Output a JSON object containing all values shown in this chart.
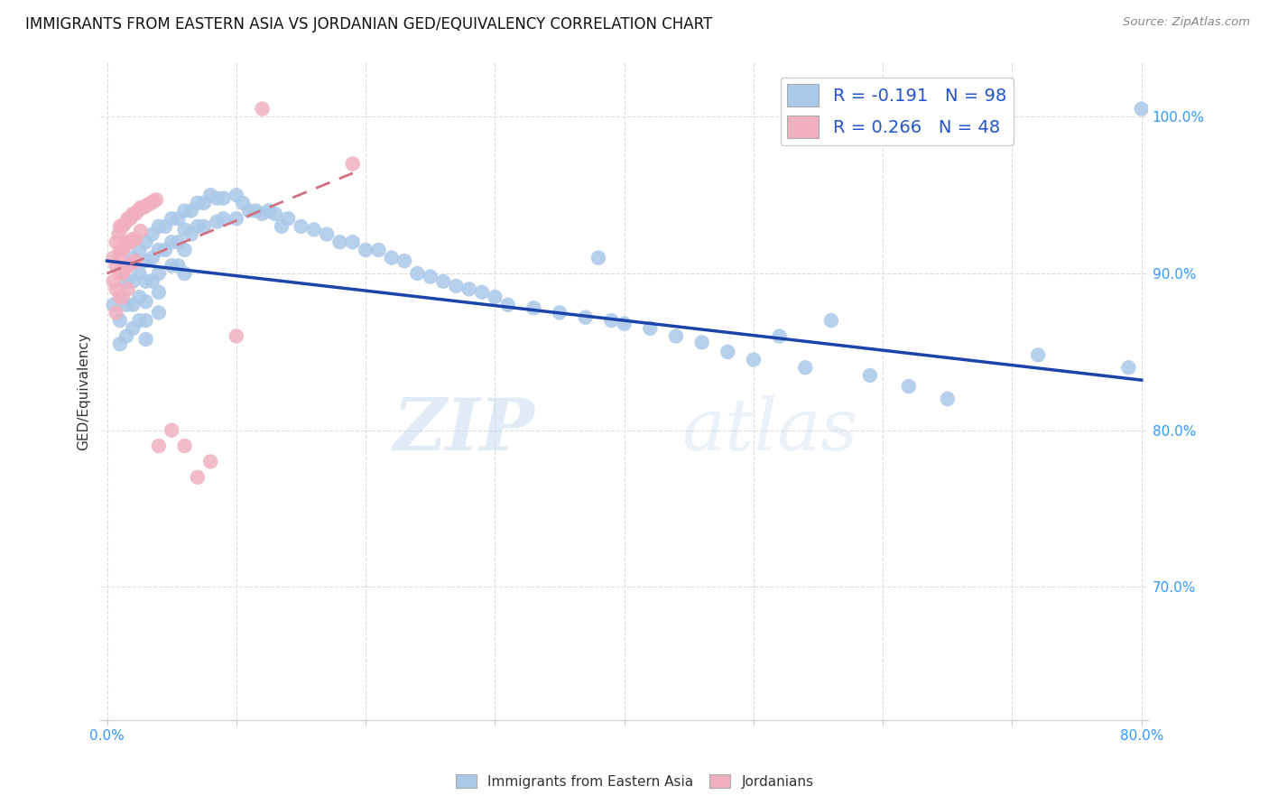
{
  "title": "IMMIGRANTS FROM EASTERN ASIA VS JORDANIAN GED/EQUIVALENCY CORRELATION CHART",
  "source": "Source: ZipAtlas.com",
  "ylabel": "GED/Equivalency",
  "y_ticks": [
    "70.0%",
    "80.0%",
    "90.0%",
    "100.0%"
  ],
  "y_tick_vals": [
    0.7,
    0.8,
    0.9,
    1.0
  ],
  "x_lim": [
    -0.005,
    0.805
  ],
  "y_lim": [
    0.615,
    1.035
  ],
  "legend_blue_r": "R = -0.191",
  "legend_blue_n": "N = 98",
  "legend_pink_r": "R = 0.266",
  "legend_pink_n": "N = 48",
  "blue_color": "#aac8e8",
  "pink_color": "#f0b0c0",
  "blue_line_color": "#1a44aa",
  "pink_line_color": "#d07080",
  "watermark_zip": "ZIP",
  "watermark_atlas": "atlas",
  "grid_color": "#dddddd",
  "tick_color": "#3399ff",
  "background_color": "#ffffff",
  "blue_scatter_x": [
    0.005,
    0.01,
    0.01,
    0.015,
    0.015,
    0.015,
    0.02,
    0.02,
    0.02,
    0.02,
    0.025,
    0.025,
    0.025,
    0.025,
    0.03,
    0.03,
    0.03,
    0.03,
    0.03,
    0.03,
    0.035,
    0.035,
    0.035,
    0.04,
    0.04,
    0.04,
    0.04,
    0.04,
    0.045,
    0.045,
    0.05,
    0.05,
    0.05,
    0.055,
    0.055,
    0.055,
    0.06,
    0.06,
    0.06,
    0.06,
    0.065,
    0.065,
    0.07,
    0.07,
    0.075,
    0.075,
    0.08,
    0.085,
    0.085,
    0.09,
    0.09,
    0.1,
    0.1,
    0.105,
    0.11,
    0.115,
    0.12,
    0.125,
    0.13,
    0.135,
    0.14,
    0.15,
    0.16,
    0.17,
    0.18,
    0.19,
    0.2,
    0.21,
    0.22,
    0.23,
    0.24,
    0.25,
    0.26,
    0.27,
    0.28,
    0.29,
    0.3,
    0.31,
    0.33,
    0.35,
    0.37,
    0.38,
    0.39,
    0.4,
    0.42,
    0.44,
    0.46,
    0.48,
    0.5,
    0.52,
    0.54,
    0.56,
    0.59,
    0.62,
    0.65,
    0.72,
    0.79,
    0.8
  ],
  "blue_scatter_y": [
    0.88,
    0.87,
    0.855,
    0.895,
    0.88,
    0.86,
    0.91,
    0.895,
    0.88,
    0.865,
    0.915,
    0.9,
    0.885,
    0.87,
    0.92,
    0.908,
    0.895,
    0.882,
    0.87,
    0.858,
    0.925,
    0.91,
    0.895,
    0.93,
    0.915,
    0.9,
    0.888,
    0.875,
    0.93,
    0.915,
    0.935,
    0.92,
    0.905,
    0.935,
    0.92,
    0.905,
    0.94,
    0.928,
    0.915,
    0.9,
    0.94,
    0.925,
    0.945,
    0.93,
    0.945,
    0.93,
    0.95,
    0.948,
    0.933,
    0.948,
    0.935,
    0.95,
    0.935,
    0.945,
    0.94,
    0.94,
    0.938,
    0.94,
    0.938,
    0.93,
    0.935,
    0.93,
    0.928,
    0.925,
    0.92,
    0.92,
    0.915,
    0.915,
    0.91,
    0.908,
    0.9,
    0.898,
    0.895,
    0.892,
    0.89,
    0.888,
    0.885,
    0.88,
    0.878,
    0.875,
    0.872,
    0.91,
    0.87,
    0.868,
    0.865,
    0.86,
    0.856,
    0.85,
    0.845,
    0.86,
    0.84,
    0.87,
    0.835,
    0.828,
    0.82,
    0.848,
    0.84,
    1.005
  ],
  "pink_scatter_x": [
    0.005,
    0.005,
    0.007,
    0.007,
    0.007,
    0.007,
    0.009,
    0.009,
    0.01,
    0.01,
    0.01,
    0.01,
    0.012,
    0.012,
    0.012,
    0.012,
    0.014,
    0.014,
    0.014,
    0.016,
    0.016,
    0.016,
    0.016,
    0.018,
    0.018,
    0.02,
    0.02,
    0.02,
    0.022,
    0.022,
    0.022,
    0.024,
    0.026,
    0.026,
    0.028,
    0.03,
    0.032,
    0.034,
    0.036,
    0.038,
    0.04,
    0.05,
    0.06,
    0.07,
    0.08,
    0.1,
    0.12,
    0.19
  ],
  "pink_scatter_y": [
    0.91,
    0.895,
    0.92,
    0.905,
    0.89,
    0.875,
    0.925,
    0.91,
    0.93,
    0.915,
    0.9,
    0.885,
    0.93,
    0.915,
    0.9,
    0.885,
    0.932,
    0.918,
    0.903,
    0.935,
    0.92,
    0.905,
    0.89,
    0.935,
    0.92,
    0.938,
    0.922,
    0.907,
    0.938,
    0.922,
    0.908,
    0.94,
    0.942,
    0.927,
    0.942,
    0.943,
    0.944,
    0.945,
    0.946,
    0.947,
    0.79,
    0.8,
    0.79,
    0.77,
    0.78,
    0.86,
    1.005,
    0.97
  ],
  "blue_line_x": [
    0.0,
    0.8
  ],
  "blue_line_y": [
    0.908,
    0.832
  ],
  "pink_line_x": [
    0.0,
    0.19
  ],
  "pink_line_y": [
    0.9,
    0.964
  ]
}
